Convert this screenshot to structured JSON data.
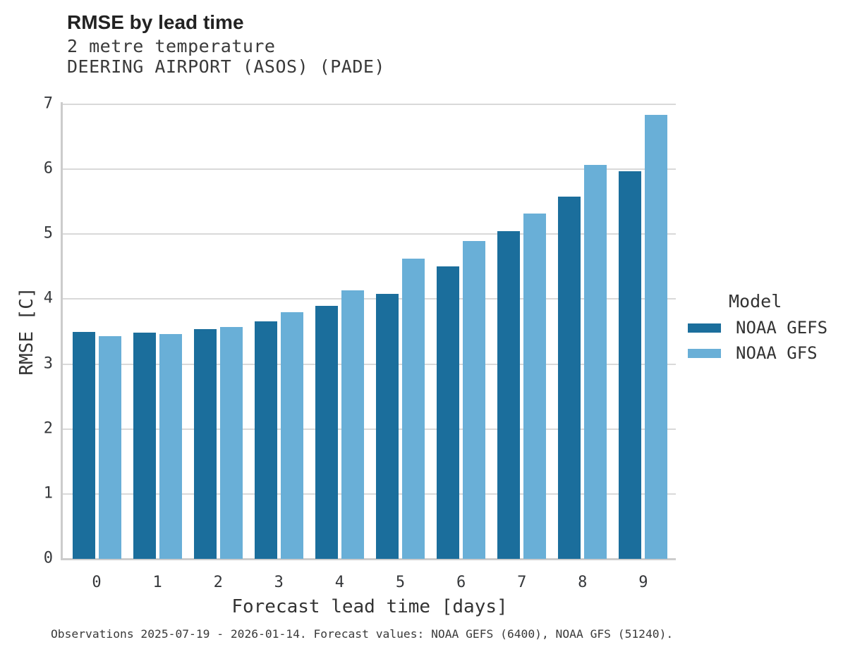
{
  "header": {
    "title": "RMSE by lead time",
    "subtitle_line1": "2 metre temperature",
    "subtitle_line2": "DEERING AIRPORT (ASOS) (PADE)"
  },
  "chart_data": {
    "type": "bar",
    "title": "RMSE by lead time",
    "subtitle": [
      "2 metre temperature",
      "DEERING AIRPORT (ASOS) (PADE)"
    ],
    "xlabel": "Forecast lead time [days]",
    "ylabel": "RMSE [C]",
    "categories": [
      "0",
      "1",
      "2",
      "3",
      "4",
      "5",
      "6",
      "7",
      "8",
      "9"
    ],
    "series": [
      {
        "name": "NOAA GEFS",
        "color": "#1b6e9c",
        "values": [
          3.49,
          3.48,
          3.54,
          3.66,
          3.9,
          4.08,
          4.5,
          5.05,
          5.58,
          5.97
        ]
      },
      {
        "name": "NOAA GFS",
        "color": "#69afd7",
        "values": [
          3.43,
          3.46,
          3.57,
          3.8,
          4.13,
          4.62,
          4.9,
          5.32,
          6.07,
          6.84
        ]
      }
    ],
    "ylim": [
      0,
      7
    ],
    "yticks": [
      0,
      1,
      2,
      3,
      4,
      5,
      6,
      7
    ],
    "grid": "horizontal",
    "legend": {
      "title": "Model",
      "position": "right",
      "entries": [
        "NOAA GEFS",
        "NOAA GFS"
      ]
    },
    "caption": "Observations 2025-07-19 - 2026-01-14. Forecast values: NOAA GEFS (6400), NOAA GFS (51240).",
    "colors": {
      "gridline": "#d9d9d9",
      "axis_line": "#cccccc",
      "text": "#333333"
    }
  }
}
